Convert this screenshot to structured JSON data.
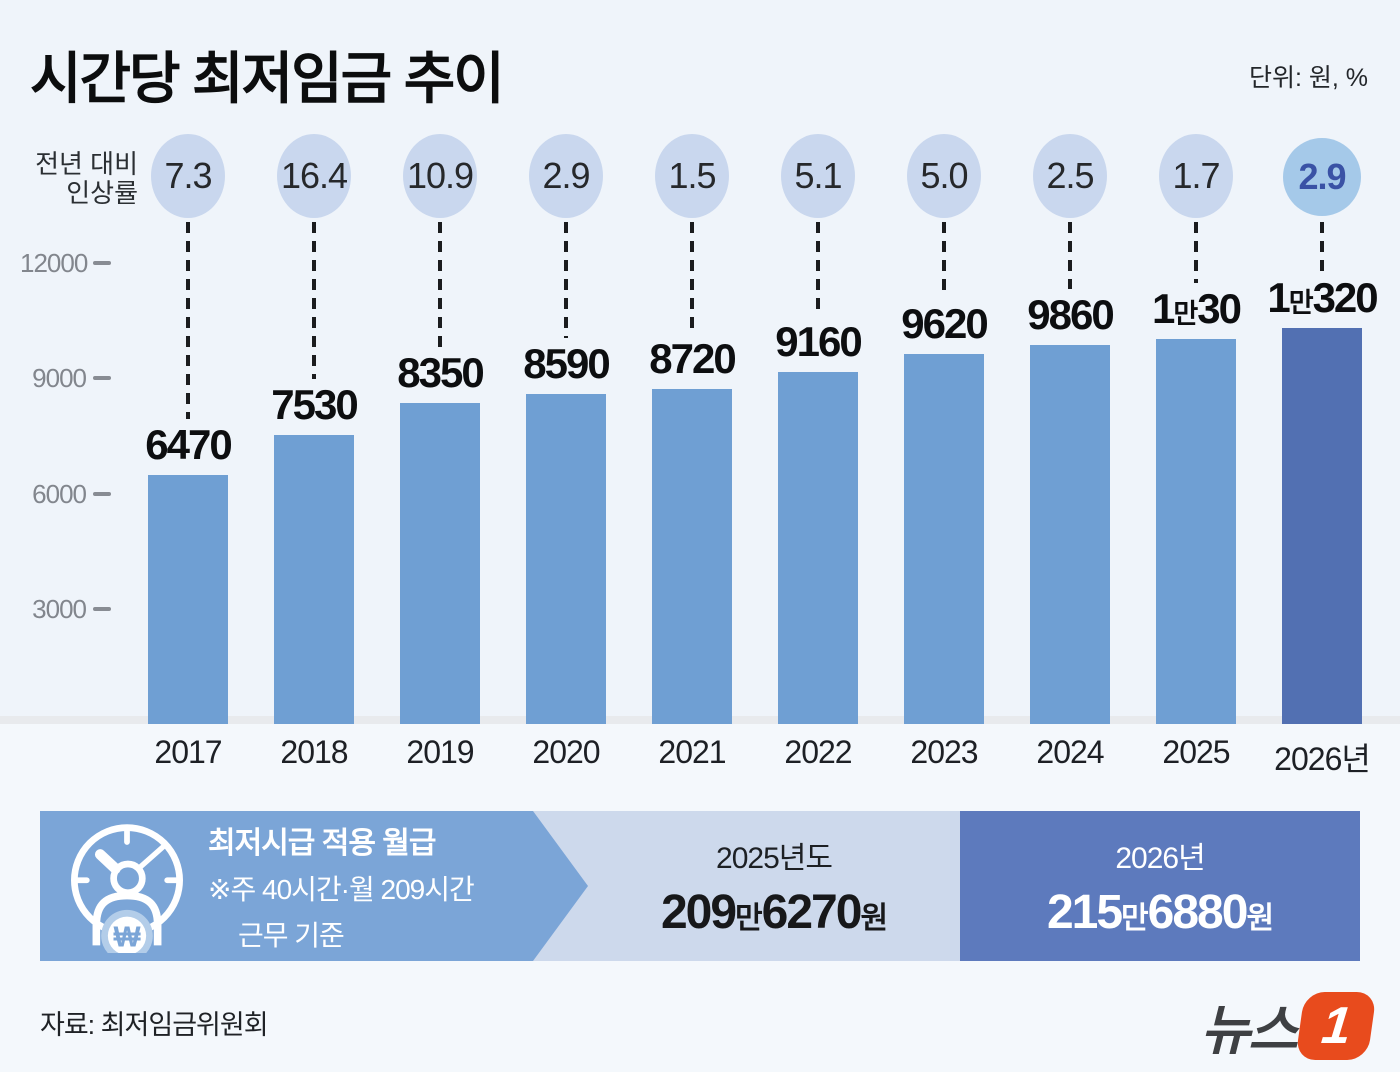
{
  "title": "시간당 최저임금 추이",
  "unit_label": "단위: 원, %",
  "rate_label": {
    "line1": "전년 대비",
    "line2": "인상률"
  },
  "colors": {
    "bg": "#eff4fa",
    "bar": "#6f9fd3",
    "bar_highlight": "#5270b2",
    "circle": "#c9d7ee",
    "circle_highlight": "#a5c9e9",
    "circle_highlight_text": "#3a52a5",
    "banner_arrow": "#7ba5d7",
    "banner_light": "#cdd9ec",
    "banner_dark": "#5d7abd",
    "logo_orange": "#e84b1d"
  },
  "chart_data": {
    "type": "bar",
    "categories": [
      "2017",
      "2018",
      "2019",
      "2020",
      "2021",
      "2022",
      "2023",
      "2024",
      "2025",
      "2026년"
    ],
    "series": [
      {
        "name": "시간당 최저임금(원)",
        "values": [
          6470,
          7530,
          8350,
          8590,
          8720,
          9160,
          9620,
          9860,
          10030,
          10320
        ]
      },
      {
        "name": "전년 대비 인상률(%)",
        "values": [
          7.3,
          16.4,
          10.9,
          2.9,
          1.5,
          5.1,
          5.0,
          2.5,
          1.7,
          2.9
        ]
      }
    ],
    "value_labels": [
      "6470",
      "7530",
      "8350",
      "8590",
      "8720",
      "9160",
      "9620",
      "9860",
      "1만30",
      "1만320"
    ],
    "rate_labels": [
      "7.3",
      "16.4",
      "10.9",
      "2.9",
      "1.5",
      "5.1",
      "5.0",
      "2.5",
      "1.7",
      "2.9"
    ],
    "highlight_index": 9,
    "ylim": [
      0,
      12000
    ],
    "yticks": [
      12000,
      9000,
      6000,
      3000
    ],
    "grid": false,
    "legend": false
  },
  "banner": {
    "label_title": "최저시급 적용 월급",
    "label_sub1": "※주 40시간·월 209시간",
    "label_sub2": "근무 기준",
    "icon": "clock-won-icon",
    "left_year": "2025년도",
    "left_amount": "209만6270원",
    "right_year": "2026년",
    "right_amount": "215만6880원"
  },
  "source": "자료: 최저임금위원회",
  "logo": {
    "text": "뉴스",
    "badge": "1"
  }
}
